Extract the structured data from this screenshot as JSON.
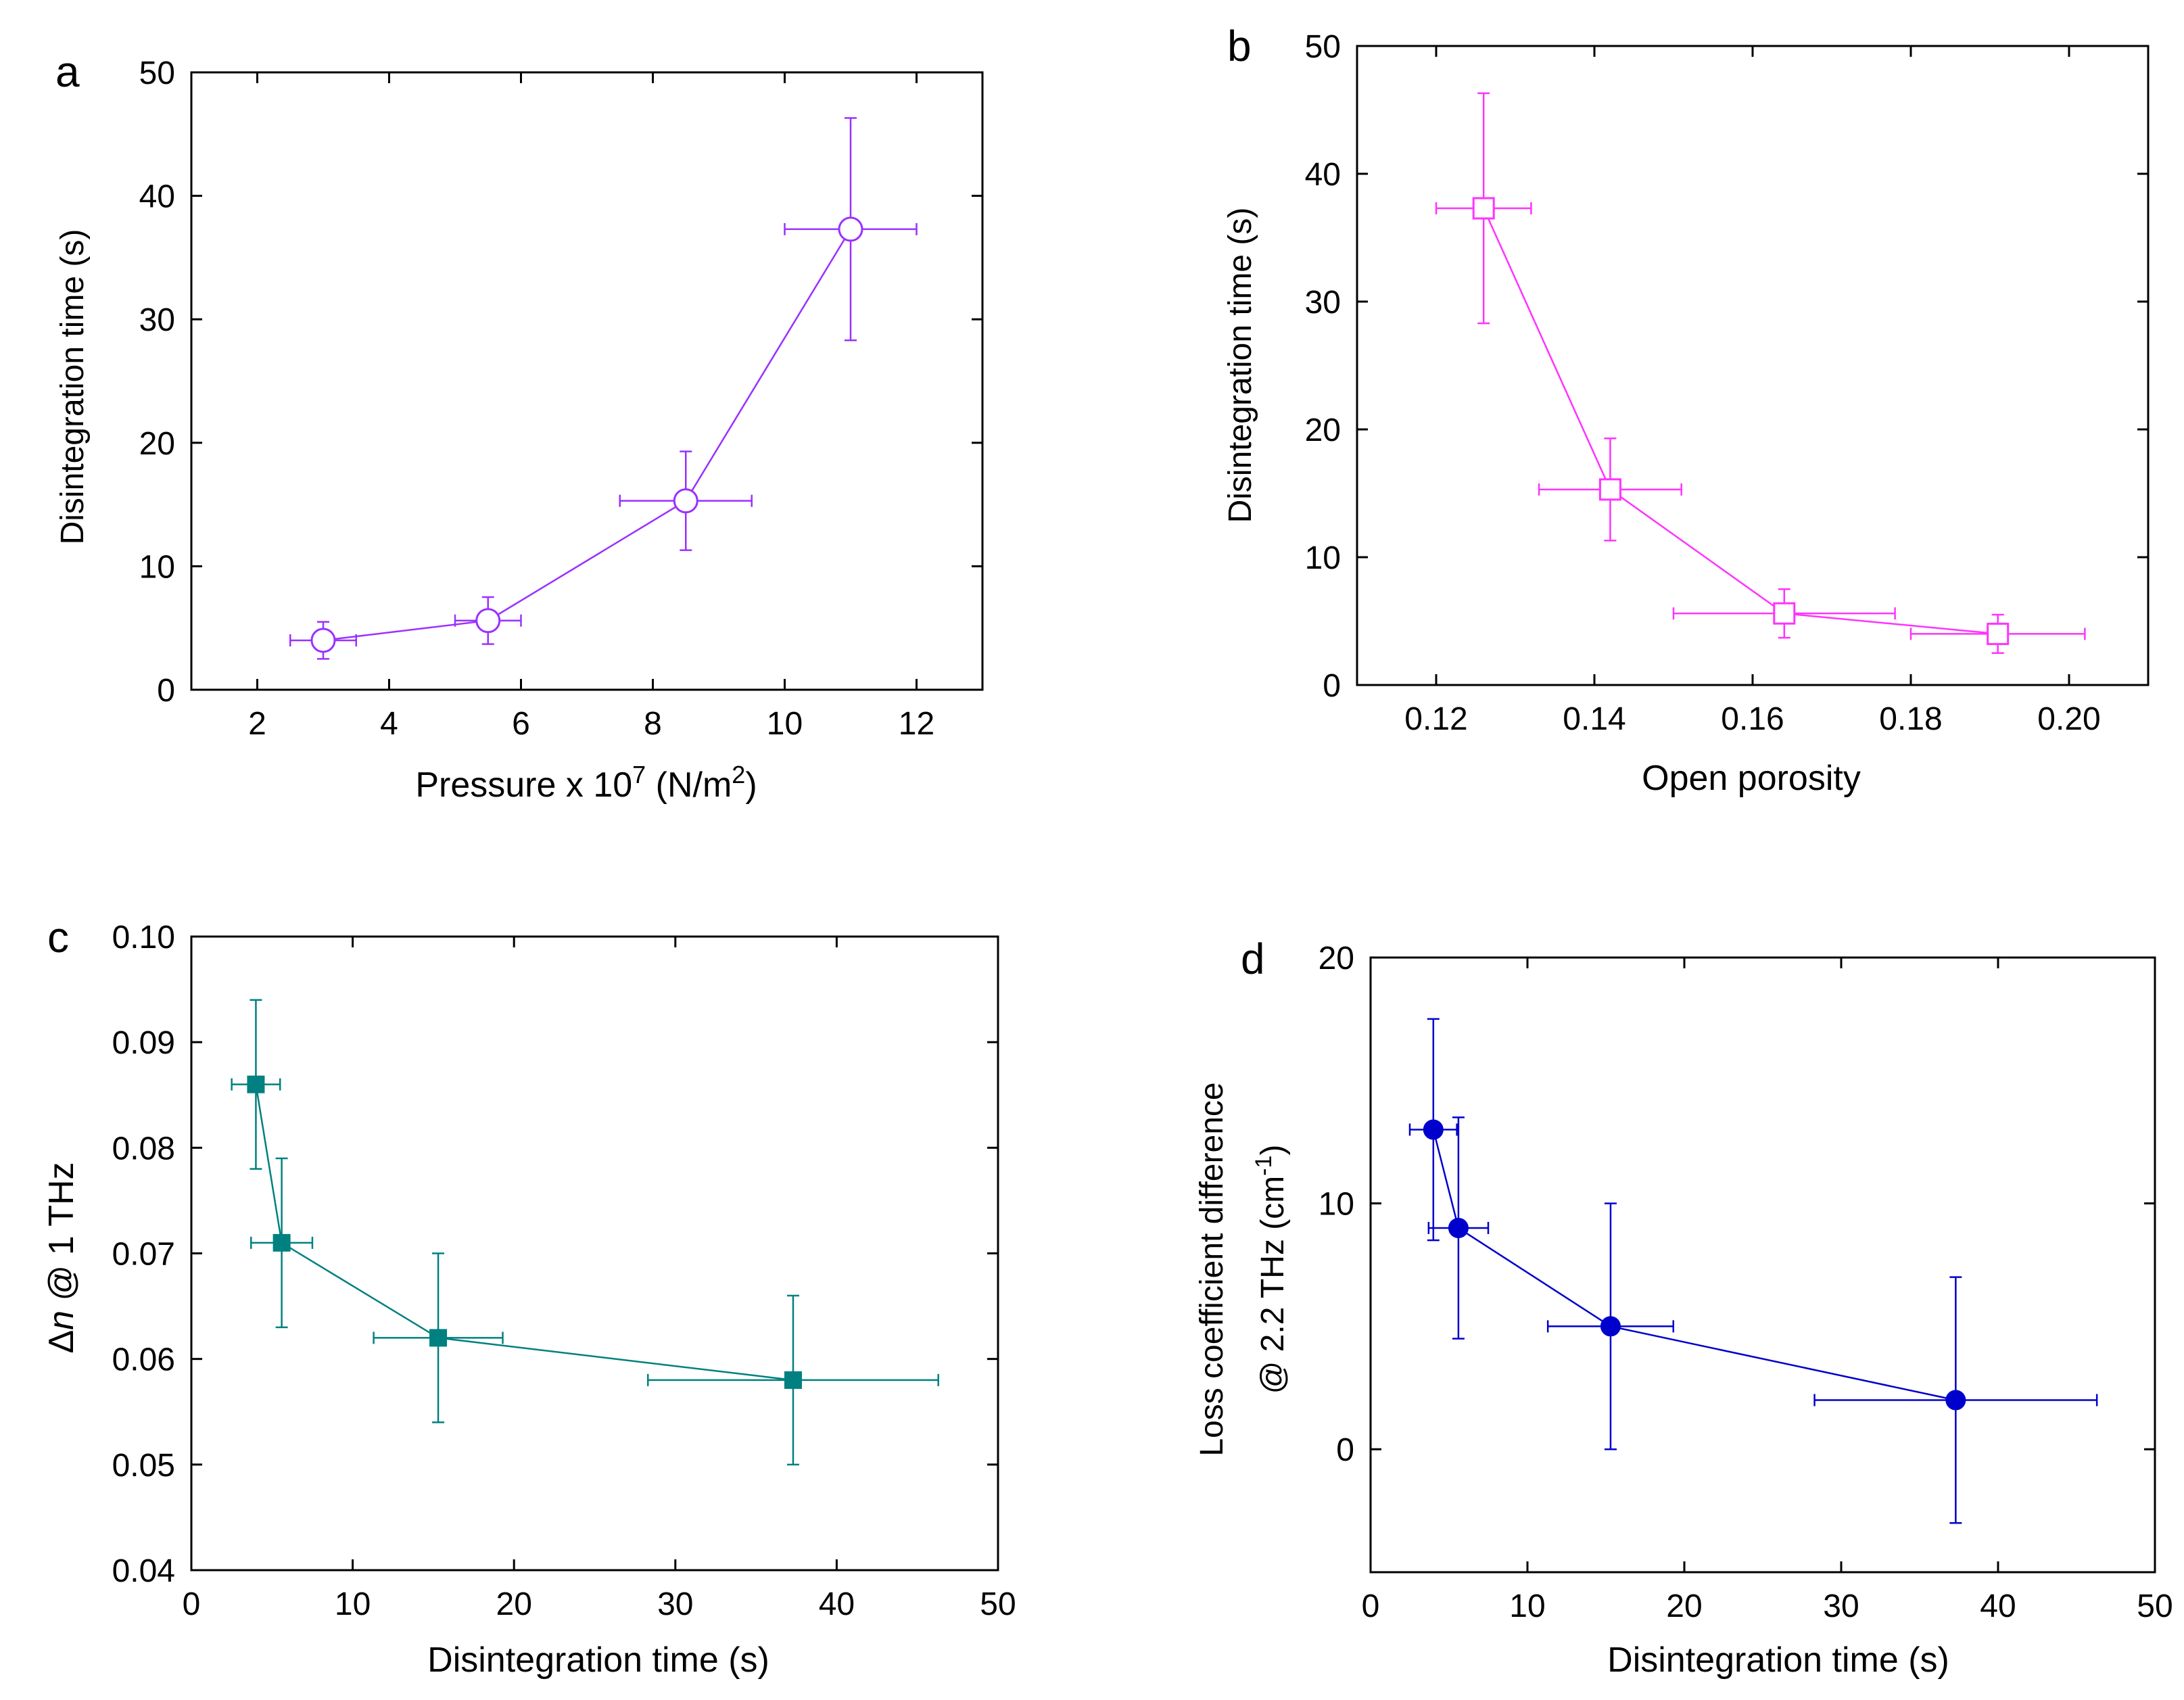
{
  "chart_data": [
    {
      "panel": "a",
      "type": "scatter",
      "connected": true,
      "marker": "open-circle",
      "color": "#9b30ff",
      "xlabel": "Pressure x 10",
      "xlabel_sup": "7",
      "xlabel_units": " (N/m",
      "xlabel_units_sup": "2",
      "xlabel_end": ")",
      "ylabel": "Disintegration time (s)",
      "xlim": [
        1,
        13
      ],
      "ylim": [
        0,
        50
      ],
      "xticks": [
        2,
        4,
        6,
        8,
        10,
        12
      ],
      "xtick_labels": [
        "2",
        "4",
        "6",
        "8",
        "10",
        "12"
      ],
      "yticks": [
        0,
        10,
        20,
        30,
        40,
        50
      ],
      "ytick_labels": [
        "0",
        "10",
        "20",
        "30",
        "40",
        "50"
      ],
      "points": [
        {
          "x": 3.0,
          "y": 4.0,
          "xerr": 0.5,
          "yerr": 1.5
        },
        {
          "x": 5.5,
          "y": 5.6,
          "xerr": 0.5,
          "yerr": 1.9
        },
        {
          "x": 8.5,
          "y": 15.3,
          "xerr": 1.0,
          "yerr": 4.0
        },
        {
          "x": 11.0,
          "y": 37.3,
          "xerr": 1.0,
          "yerr": 9.0
        }
      ]
    },
    {
      "panel": "b",
      "type": "scatter",
      "connected": true,
      "marker": "open-square",
      "color": "#ff33ff",
      "xlabel": "Open porosity",
      "ylabel": "Disintegration time (s)",
      "xlim": [
        0.11,
        0.21
      ],
      "ylim": [
        0,
        50
      ],
      "xticks": [
        0.12,
        0.14,
        0.16,
        0.18,
        0.2
      ],
      "xtick_labels": [
        "0.12",
        "0.14",
        "0.16",
        "0.18",
        "0.20"
      ],
      "yticks": [
        0,
        10,
        20,
        30,
        40,
        50
      ],
      "ytick_labels": [
        "0",
        "10",
        "20",
        "30",
        "40",
        "50"
      ],
      "points": [
        {
          "x": 0.126,
          "y": 37.3,
          "xerr": 0.006,
          "yerr": 9.0
        },
        {
          "x": 0.142,
          "y": 15.3,
          "xerr": 0.009,
          "yerr": 4.0
        },
        {
          "x": 0.164,
          "y": 5.6,
          "xerr": 0.014,
          "yerr": 1.9
        },
        {
          "x": 0.191,
          "y": 4.0,
          "xerr": 0.011,
          "yerr": 1.5
        }
      ]
    },
    {
      "panel": "c",
      "type": "scatter",
      "connected": true,
      "marker": "filled-square",
      "color": "#008080",
      "xlabel": "Disintegration time (s)",
      "ylabel_symbol": "Δ",
      "ylabel_italic": "n",
      "ylabel": " @ 1 THz",
      "xlim": [
        0,
        50
      ],
      "ylim": [
        0.04,
        0.1
      ],
      "xticks": [
        0,
        10,
        20,
        30,
        40,
        50
      ],
      "xtick_labels": [
        "0",
        "10",
        "20",
        "30",
        "40",
        "50"
      ],
      "yticks": [
        0.04,
        0.05,
        0.06,
        0.07,
        0.08,
        0.09,
        0.1
      ],
      "ytick_labels": [
        "0.04",
        "0.05",
        "0.06",
        "0.07",
        "0.08",
        "0.09",
        "0.10"
      ],
      "points": [
        {
          "x": 4.0,
          "y": 0.086,
          "xerr": 1.5,
          "yerr": 0.008
        },
        {
          "x": 5.6,
          "y": 0.071,
          "xerr": 1.9,
          "yerr": 0.008
        },
        {
          "x": 15.3,
          "y": 0.062,
          "xerr": 4.0,
          "yerr": 0.008
        },
        {
          "x": 37.3,
          "y": 0.058,
          "xerr": 9.0,
          "yerr": 0.008
        }
      ]
    },
    {
      "panel": "d",
      "type": "scatter",
      "connected": true,
      "marker": "filled-circle",
      "color": "#0000cc",
      "xlabel": "Disintegration time (s)",
      "ylabel_line1": "Loss coefficient difference",
      "ylabel_line2": "@ 2.2 THz (cm",
      "ylabel_line2_sup": "-1",
      "ylabel_line2_end": ")",
      "xlim": [
        0,
        50
      ],
      "ylim": [
        -5,
        20
      ],
      "xticks": [
        0,
        10,
        20,
        30,
        40,
        50
      ],
      "xtick_labels": [
        "0",
        "10",
        "20",
        "30",
        "40",
        "50"
      ],
      "yticks": [
        0,
        10,
        20
      ],
      "ytick_labels": [
        "0",
        "10",
        "20"
      ],
      "points": [
        {
          "x": 4.0,
          "y": 13.0,
          "xerr": 1.5,
          "yerr": 4.5
        },
        {
          "x": 5.6,
          "y": 9.0,
          "xerr": 1.9,
          "yerr": 4.5
        },
        {
          "x": 15.3,
          "y": 5.0,
          "xerr": 4.0,
          "yerr": 5.0
        },
        {
          "x": 37.3,
          "y": 2.0,
          "xerr": 9.0,
          "yerr": 5.0
        }
      ]
    }
  ]
}
